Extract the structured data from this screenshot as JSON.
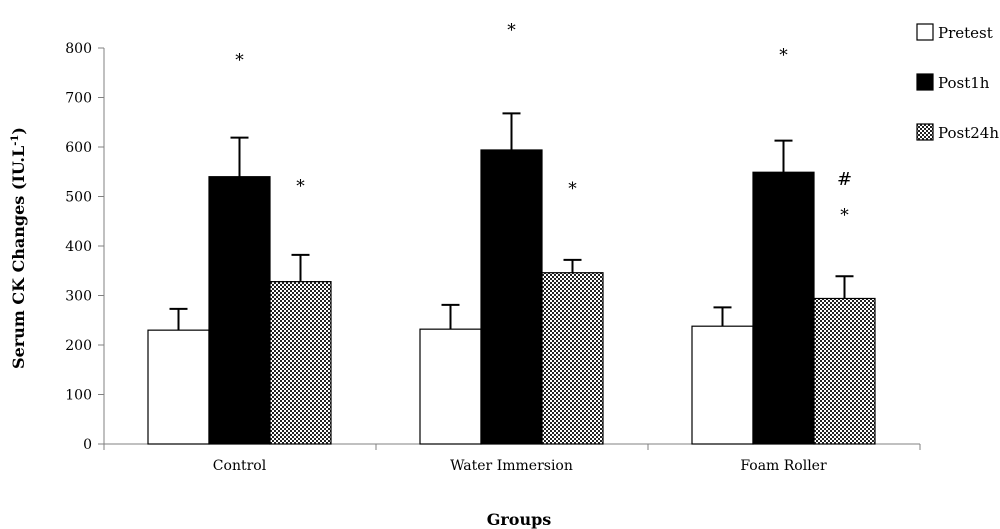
{
  "chart_data": {
    "type": "bar",
    "title": "",
    "xlabel": "Groups",
    "ylabel": "Serum CK Changes (IU.L",
    "ylabel_superscript": "-1",
    "ylabel_close": ")",
    "ylim": [
      0,
      800
    ],
    "yticks": [
      0,
      100,
      200,
      300,
      400,
      500,
      600,
      700,
      800
    ],
    "grid": false,
    "legend_position": "right",
    "categories": [
      "Control",
      "Water Immersion",
      "Foam Roller"
    ],
    "series": [
      {
        "name": "Pretest",
        "fill": "white",
        "values": [
          230,
          232,
          238
        ],
        "errors": [
          43,
          49,
          38
        ]
      },
      {
        "name": "Post1h",
        "fill": "black",
        "values": [
          540,
          594,
          549
        ],
        "errors": [
          79,
          74,
          64
        ]
      },
      {
        "name": "Post24h",
        "fill": "checker",
        "values": [
          328,
          346,
          294
        ],
        "errors": [
          54,
          26,
          45
        ]
      }
    ],
    "annotations": [
      {
        "category": 0,
        "series": 1,
        "text": "*",
        "y": 785
      },
      {
        "category": 0,
        "series": 2,
        "text": "*",
        "y": 530
      },
      {
        "category": 1,
        "series": 1,
        "text": "*",
        "y": 845
      },
      {
        "category": 1,
        "series": 2,
        "text": "*",
        "y": 525
      },
      {
        "category": 2,
        "series": 1,
        "text": "*",
        "y": 795
      },
      {
        "category": 2,
        "series": 2,
        "text": "#",
        "y": 535
      },
      {
        "category": 2,
        "series": 2,
        "text": "*",
        "y": 472
      }
    ]
  },
  "colors": {
    "axis": "#808080",
    "bar_stroke": "#000000",
    "black_fill": "#000000",
    "white_fill": "#ffffff",
    "pattern_dark": "#222222",
    "pattern_light": "#ffffff"
  }
}
